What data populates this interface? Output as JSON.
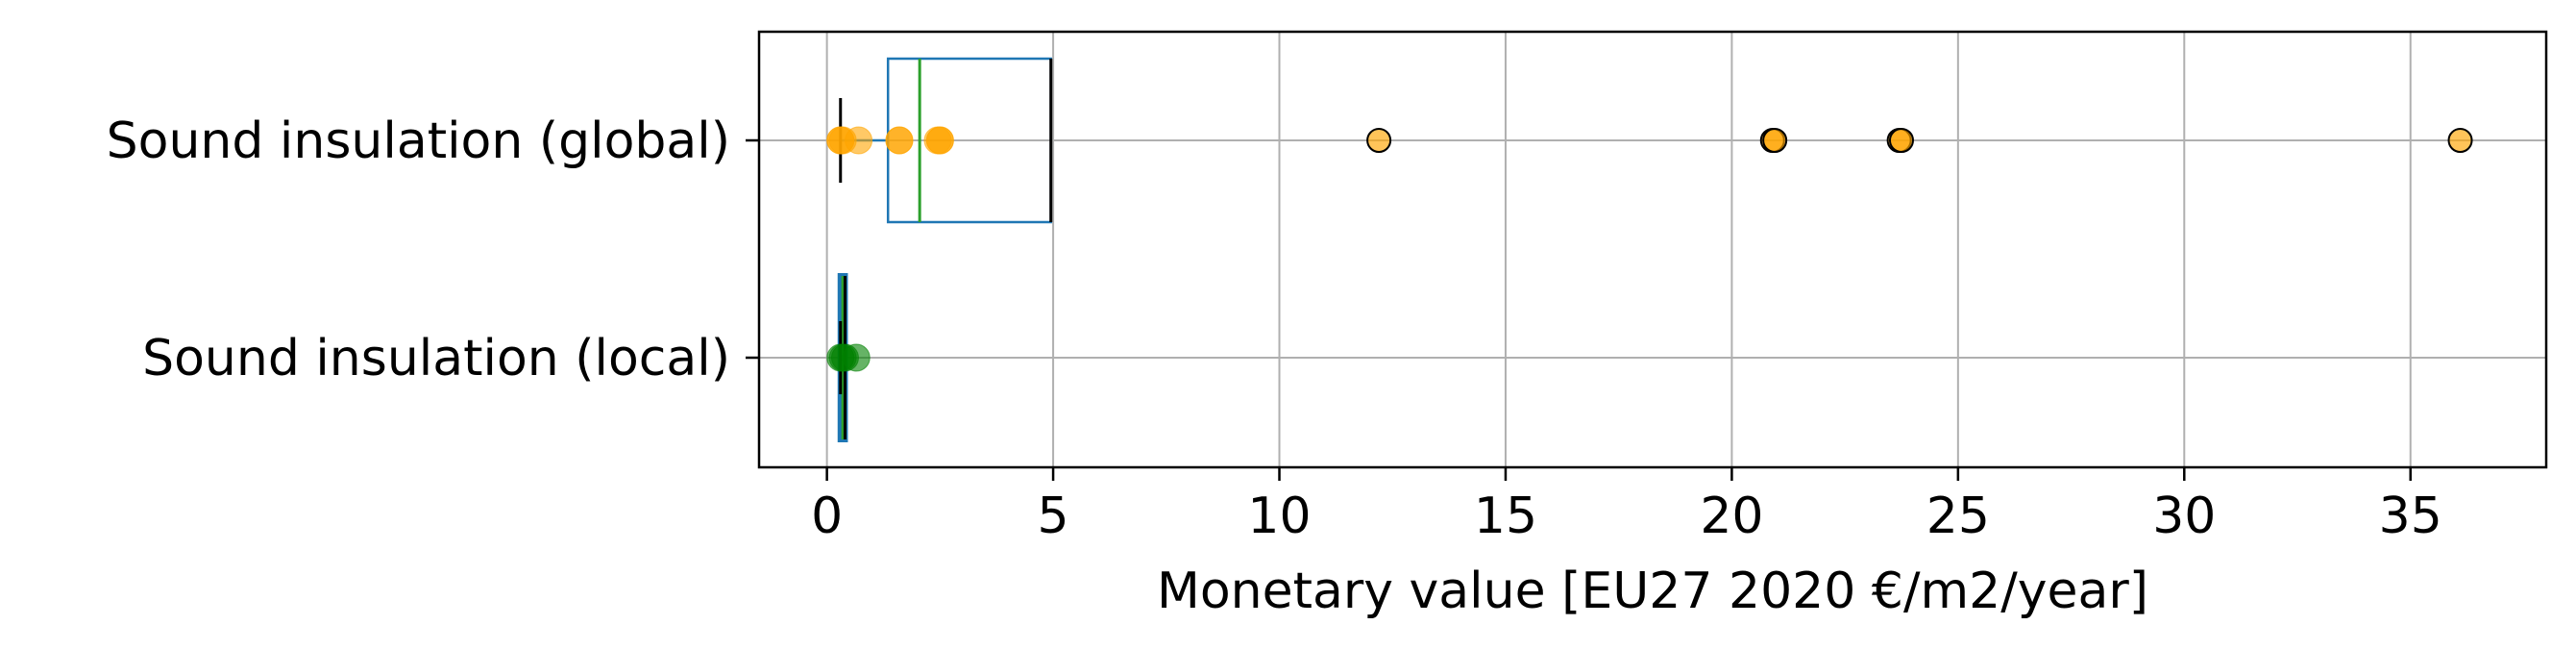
{
  "chart_data": {
    "type": "box",
    "orientation": "horizontal",
    "title": "",
    "xlabel": "Monetary value [EU27 2020 €/m2/year]",
    "ylabel": "",
    "xlim": [
      -1.5,
      38
    ],
    "x_ticks": [
      0,
      5,
      10,
      15,
      20,
      25,
      30,
      35
    ],
    "grid": true,
    "categories": [
      {
        "label": "Sound insulation (global)",
        "box": {
          "min": 0.3,
          "q1": 1.35,
          "median": 2.05,
          "q3": 4.95,
          "max": 4.95
        },
        "box_color": "#1f77b4",
        "median_color": "#2ca02c",
        "points": [
          0.3,
          0.3,
          0.35,
          0.7,
          1.6,
          1.6,
          2.45,
          2.5,
          2.5
        ],
        "outliers": [
          12.2,
          20.9,
          20.95,
          23.7,
          23.75,
          36.1
        ],
        "point_color": "#ffa500"
      },
      {
        "label": "Sound insulation (local)",
        "box": {
          "min": 0.3,
          "q1": 0.3,
          "median": 0.35,
          "q3": 0.4,
          "max": 0.4
        },
        "box_color": "#1f77b4",
        "median_color": "#2ca02c",
        "points": [
          0.3,
          0.35,
          0.4,
          0.65
        ],
        "outliers": [],
        "point_color": "#008000"
      }
    ]
  }
}
